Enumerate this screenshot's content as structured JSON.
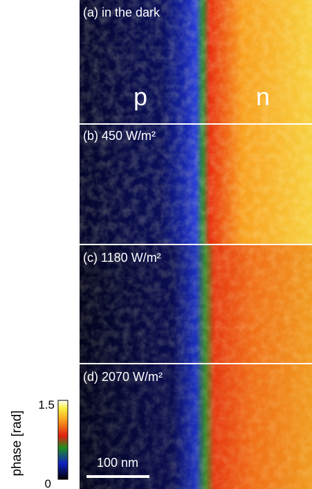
{
  "panels": [
    {
      "label": "(a) in the dark"
    },
    {
      "label": "(b) 450 W/m²"
    },
    {
      "label": "(c) 1180 W/m²"
    },
    {
      "label": "(d) 2070 W/m²"
    }
  ],
  "region_labels": {
    "left": "p",
    "right": "n"
  },
  "colorbar": {
    "label": "phase [rad]",
    "max_label": "1.5",
    "min_label": "0"
  },
  "scale_bar": "100 nm"
}
